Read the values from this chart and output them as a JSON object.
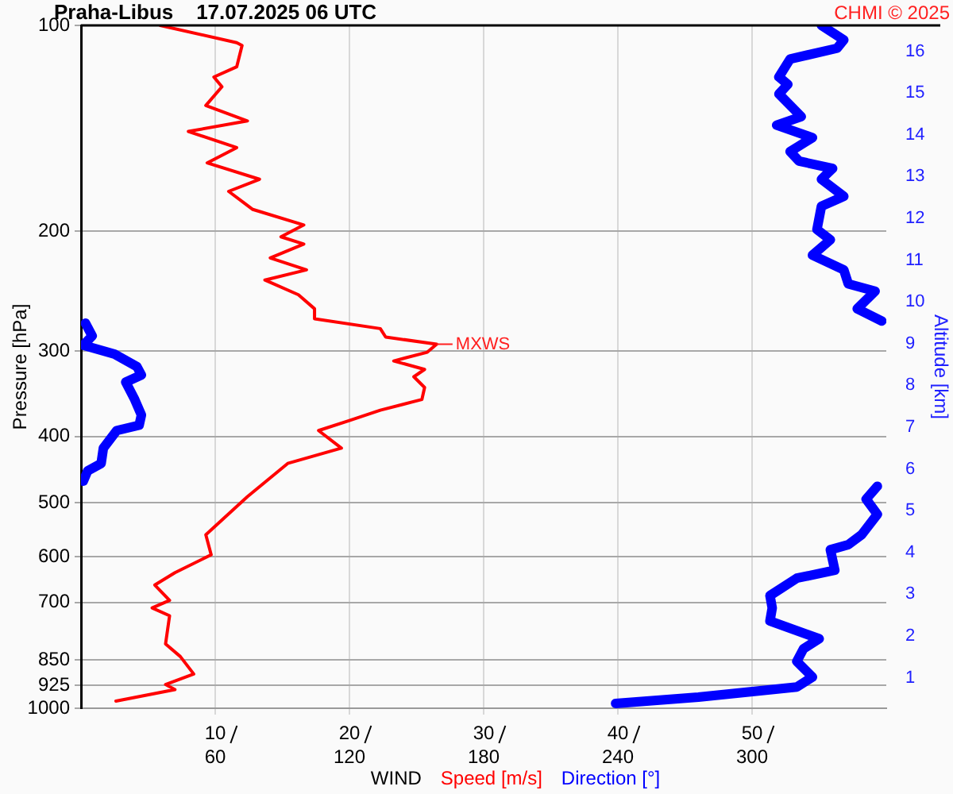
{
  "chart_data": {
    "type": "line",
    "title": "Praha-Libus    17.07.2025 06 UTC",
    "xlabel": "WIND",
    "ylabel": "Pressure [hPa]",
    "y2label": "Altitude [km]",
    "annotations": [
      "CHMI © 2025",
      {
        "text": "MXWS",
        "x": 26.5,
        "y": 293
      }
    ],
    "xlim": [
      0,
      60
    ],
    "xticks": [
      10,
      20,
      30,
      40,
      50
    ],
    "x2lim": [
      0,
      360
    ],
    "x2ticks": [
      60,
      120,
      180,
      240,
      300
    ],
    "ylim": [
      1000,
      100
    ],
    "yticks": [
      100,
      200,
      300,
      400,
      500,
      600,
      700,
      850,
      925,
      1000
    ],
    "log": "y",
    "y2lim": [
      0.27,
      16.62
    ],
    "y2ticks": [
      1,
      2,
      3,
      4,
      5,
      6,
      7,
      8,
      9,
      10,
      11,
      12,
      13,
      14,
      15,
      16
    ],
    "grid": true,
    "legend": "bottom",
    "series": [
      {
        "name": "Speed [m/s]",
        "color": "#ff0000",
        "x": [
          5.9,
          11.6,
          12.0,
          11.6,
          9.9,
          10.5,
          9.3,
          12.4,
          8.0,
          11.6,
          9.4,
          13.3,
          11.0,
          12.8,
          16.6,
          14.9,
          16.6,
          14.1,
          16.8,
          13.7,
          16.2,
          17.4,
          17.4,
          22.3,
          22.7,
          26.5,
          25.8,
          23.3,
          25.6,
          24.8,
          25.6,
          25.4,
          22.3,
          20.0,
          17.7,
          19.4,
          15.4,
          12.4,
          9.3,
          9.7,
          7.0,
          5.5,
          6.6,
          5.3,
          6.6,
          6.3,
          7.4,
          8.4,
          6.3,
          7.0,
          2.6
        ],
        "values": [
          100,
          106,
          107,
          115,
          119,
          123,
          131,
          138,
          143,
          151,
          159,
          168,
          175,
          186,
          196,
          204,
          209,
          219,
          228,
          236,
          248,
          260,
          269,
          278,
          286,
          293,
          301,
          310,
          319,
          327,
          339,
          353,
          366,
          379,
          392,
          416,
          438,
          490,
          557,
          596,
          633,
          660,
          695,
          713,
          732,
          805,
          840,
          891,
          923,
          939,
          976
        ]
      },
      {
        "name": "Direction [°]",
        "color": "#0000ff",
        "axis": "x2",
        "x": [
          331,
          341,
          338,
          317,
          312,
          316,
          312,
          322,
          311,
          327,
          317,
          321,
          336,
          331,
          341,
          331,
          329,
          335,
          327,
          341,
          343,
          355,
          347,
          358
        ],
        "values": [
          100,
          105,
          108,
          112,
          119,
          122,
          126,
          136,
          140,
          146,
          153,
          158,
          162,
          168,
          178,
          184,
          199,
          206,
          217,
          228,
          239,
          245,
          260,
          271
        ]
      },
      {
        "color": "#0000ff",
        "axis": "x2",
        "x": [
          2,
          5,
          1,
          15,
          25,
          27,
          20,
          24,
          27,
          26,
          16,
          10,
          9,
          3,
          1
        ],
        "values": [
          273,
          285,
          294,
          303,
          316,
          325,
          333,
          353,
          372,
          385,
          392,
          416,
          438,
          449,
          465
        ]
      },
      {
        "color": "#0000ff",
        "axis": "x2",
        "x": [
          356,
          351,
          356,
          349,
          343,
          335,
          337,
          320,
          308,
          309,
          308,
          330,
          323,
          320,
          327,
          320,
          276,
          239
        ],
        "values": [
          473,
          494,
          520,
          557,
          576,
          586,
          628,
          645,
          684,
          713,
          745,
          791,
          818,
          854,
          900,
          931,
          963,
          984
        ]
      }
    ]
  }
}
